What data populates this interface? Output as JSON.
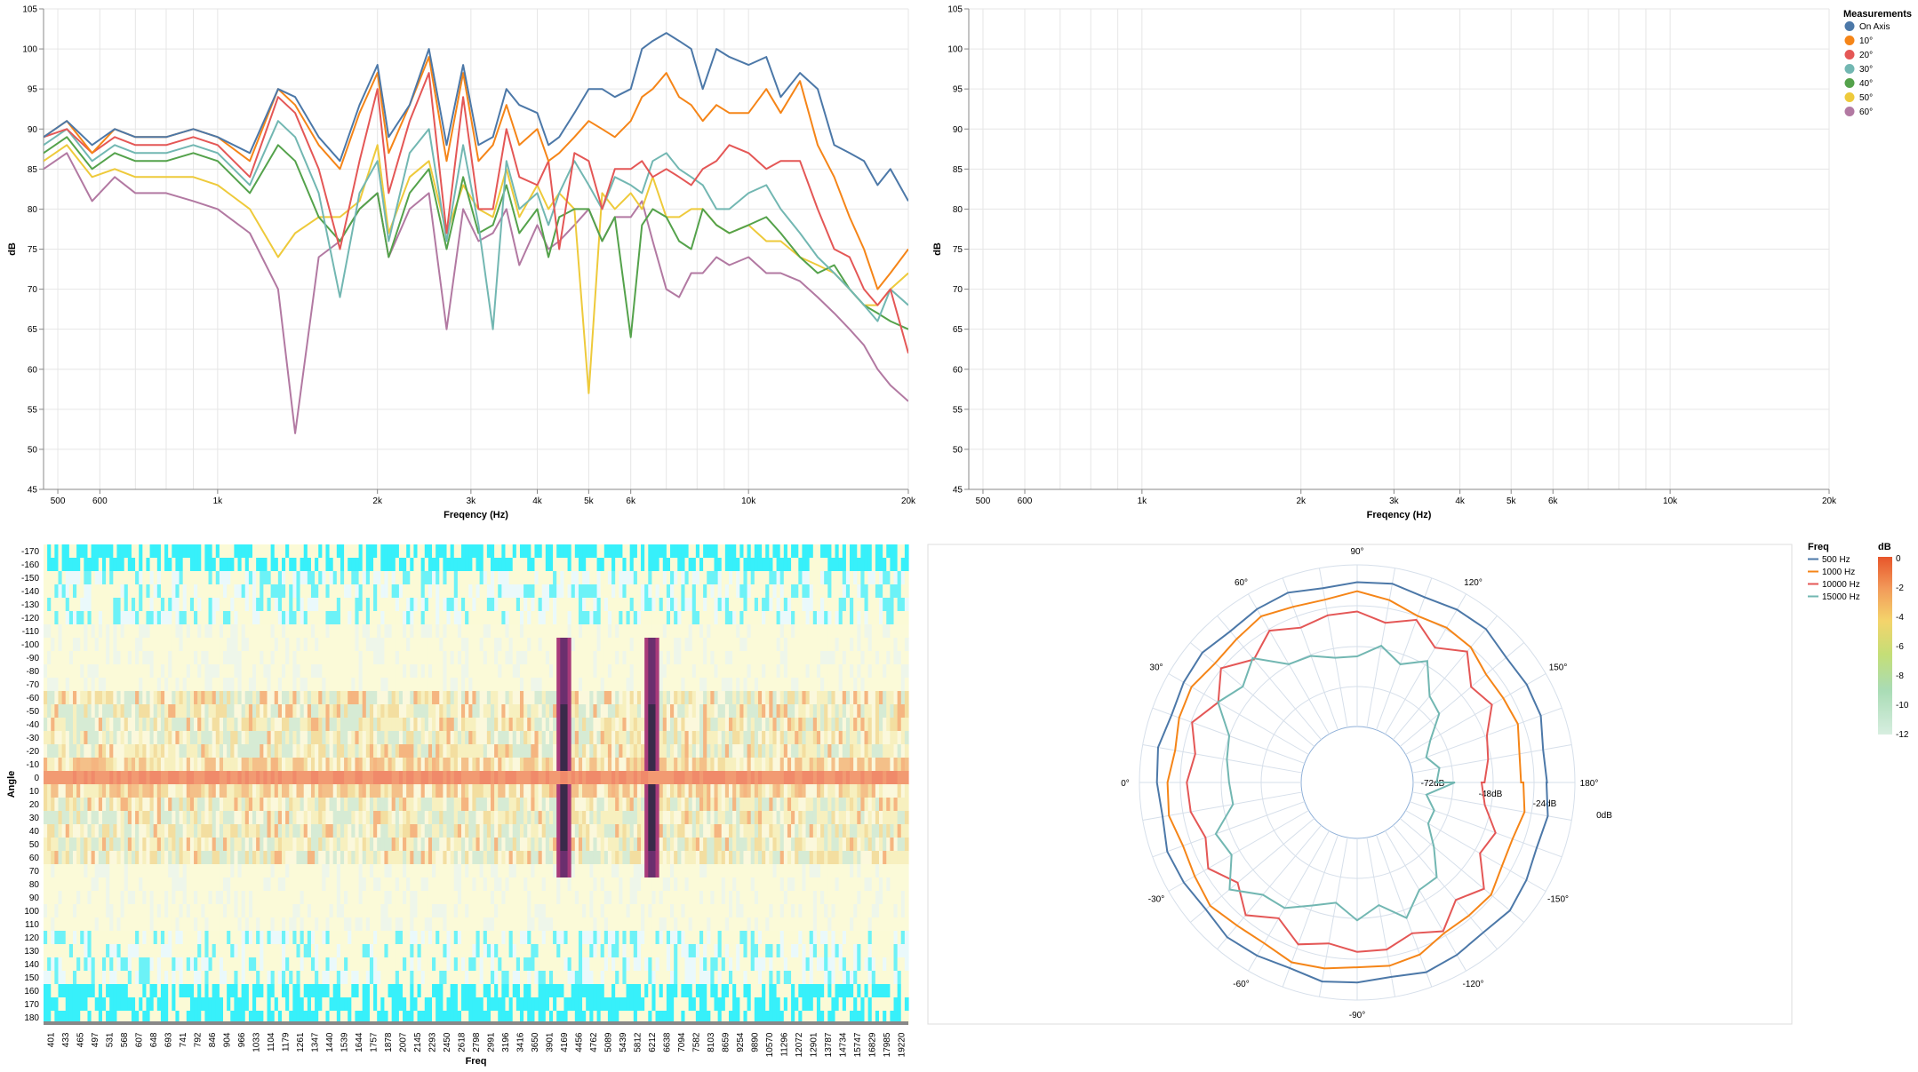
{
  "chart_data": [
    {
      "type": "line",
      "panel": "spl-top-left",
      "xlabel": "Freqency (Hz)",
      "ylabel": "dB",
      "x_scale": "log",
      "xlim": [
        470,
        20000
      ],
      "ylim": [
        45,
        105
      ],
      "x_ticks": [
        500,
        600,
        1000,
        2000,
        3000,
        4000,
        5000,
        6000,
        10000,
        20000
      ],
      "x_tick_labels": [
        "500",
        "600",
        "1k",
        "2k",
        "3k",
        "4k",
        "5k",
        "6k",
        "10k",
        "20k"
      ],
      "y_ticks": [
        45,
        50,
        55,
        60,
        65,
        70,
        75,
        80,
        85,
        90,
        95,
        100,
        105
      ],
      "grid": true,
      "series": [
        {
          "name": "On Axis",
          "color": "#4c78a8",
          "x": [
            470,
            520,
            580,
            640,
            700,
            800,
            900,
            1000,
            1150,
            1300,
            1400,
            1550,
            1700,
            1850,
            2000,
            2100,
            2300,
            2500,
            2700,
            2900,
            3100,
            3300,
            3500,
            3700,
            4000,
            4200,
            4400,
            4700,
            5000,
            5300,
            5600,
            6000,
            6300,
            6600,
            7000,
            7400,
            7800,
            8200,
            8700,
            9200,
            10000,
            10800,
            11500,
            12500,
            13500,
            14500,
            15500,
            16500,
            17500,
            18500,
            20000
          ],
          "y": [
            89,
            91,
            88,
            90,
            89,
            89,
            90,
            89,
            87,
            95,
            94,
            89,
            86,
            93,
            98,
            89,
            93,
            100,
            88,
            98,
            88,
            89,
            95,
            93,
            92,
            88,
            89,
            92,
            95,
            95,
            94,
            95,
            100,
            101,
            102,
            101,
            100,
            95,
            100,
            99,
            98,
            99,
            94,
            97,
            95,
            88,
            87,
            86,
            83,
            85,
            81
          ]
        },
        {
          "name": "10°",
          "color": "#f58518",
          "x": [
            470,
            520,
            580,
            640,
            700,
            800,
            900,
            1000,
            1150,
            1300,
            1400,
            1550,
            1700,
            1850,
            2000,
            2100,
            2300,
            2500,
            2700,
            2900,
            3100,
            3300,
            3500,
            3700,
            4000,
            4200,
            4400,
            4700,
            5000,
            5300,
            5600,
            6000,
            6300,
            6600,
            7000,
            7400,
            7800,
            8200,
            8700,
            9200,
            10000,
            10800,
            11500,
            12500,
            13500,
            14500,
            15500,
            16500,
            17500,
            18500,
            20000
          ],
          "y": [
            89,
            91,
            87,
            90,
            89,
            89,
            90,
            89,
            86,
            95,
            93,
            88,
            85,
            92,
            97,
            87,
            93,
            99,
            86,
            97,
            86,
            88,
            93,
            88,
            90,
            86,
            87,
            89,
            91,
            90,
            89,
            91,
            94,
            95,
            97,
            94,
            93,
            91,
            93,
            92,
            92,
            95,
            92,
            96,
            88,
            84,
            79,
            75,
            70,
            72,
            75
          ]
        },
        {
          "name": "20°",
          "color": "#e45756",
          "x": [
            470,
            520,
            580,
            640,
            700,
            800,
            900,
            1000,
            1150,
            1300,
            1400,
            1550,
            1700,
            1850,
            2000,
            2100,
            2300,
            2500,
            2700,
            2900,
            3100,
            3300,
            3500,
            3700,
            4000,
            4200,
            4400,
            4700,
            5000,
            5300,
            5600,
            6000,
            6300,
            6600,
            7000,
            7400,
            7800,
            8200,
            8700,
            9200,
            10000,
            10800,
            11500,
            12500,
            13500,
            14500,
            15500,
            16500,
            17500,
            18500,
            20000
          ],
          "y": [
            89,
            90,
            87,
            89,
            88,
            88,
            89,
            88,
            84,
            94,
            92,
            85,
            75,
            86,
            95,
            82,
            91,
            97,
            77,
            94,
            80,
            80,
            90,
            84,
            83,
            86,
            75,
            87,
            86,
            80,
            85,
            85,
            86,
            84,
            85,
            84,
            83,
            85,
            86,
            88,
            87,
            85,
            86,
            86,
            80,
            75,
            74,
            70,
            68,
            70,
            62
          ]
        },
        {
          "name": "30°",
          "color": "#72b7b2",
          "x": [
            470,
            520,
            580,
            640,
            700,
            800,
            900,
            1000,
            1150,
            1300,
            1400,
            1550,
            1700,
            1850,
            2000,
            2100,
            2300,
            2500,
            2700,
            2900,
            3100,
            3300,
            3500,
            3700,
            4000,
            4200,
            4400,
            4700,
            5000,
            5300,
            5600,
            6000,
            6300,
            6600,
            7000,
            7400,
            7800,
            8200,
            8700,
            9200,
            10000,
            10800,
            11500,
            12500,
            13500,
            14500,
            15500,
            16500,
            17500,
            18500,
            20000
          ],
          "y": [
            88,
            90,
            86,
            88,
            87,
            87,
            88,
            87,
            83,
            91,
            89,
            82,
            69,
            82,
            86,
            76,
            87,
            90,
            76,
            88,
            78,
            65,
            86,
            80,
            82,
            78,
            82,
            86,
            83,
            80,
            84,
            83,
            82,
            86,
            87,
            85,
            84,
            83,
            80,
            80,
            82,
            83,
            80,
            77,
            74,
            72,
            70,
            68,
            66,
            70,
            68
          ]
        },
        {
          "name": "40°",
          "color": "#54a24b",
          "x": [
            470,
            520,
            580,
            640,
            700,
            800,
            900,
            1000,
            1150,
            1300,
            1400,
            1550,
            1700,
            1850,
            2000,
            2100,
            2300,
            2500,
            2700,
            2900,
            3100,
            3300,
            3500,
            3700,
            4000,
            4200,
            4400,
            4700,
            5000,
            5300,
            5600,
            6000,
            6300,
            6600,
            7000,
            7400,
            7800,
            8200,
            8700,
            9200,
            10000,
            10800,
            11500,
            12500,
            13500,
            14500,
            15500,
            16500,
            17500,
            18500,
            20000
          ],
          "y": [
            87,
            89,
            85,
            87,
            86,
            86,
            87,
            86,
            82,
            88,
            86,
            79,
            76,
            80,
            82,
            74,
            82,
            85,
            75,
            84,
            77,
            78,
            83,
            77,
            80,
            74,
            79,
            80,
            80,
            76,
            79,
            64,
            78,
            80,
            79,
            76,
            75,
            80,
            78,
            77,
            78,
            79,
            77,
            74,
            72,
            73,
            70,
            68,
            67,
            66,
            65
          ]
        },
        {
          "name": "50°",
          "color": "#eeca3b",
          "x": [
            470,
            520,
            580,
            640,
            700,
            800,
            900,
            1000,
            1150,
            1300,
            1400,
            1550,
            1700,
            1850,
            2000,
            2100,
            2300,
            2500,
            2700,
            2900,
            3100,
            3300,
            3500,
            3700,
            4000,
            4200,
            4400,
            4700,
            5000,
            5300,
            5600,
            6000,
            6300,
            6600,
            7000,
            7400,
            7800,
            8200,
            8700,
            9200,
            10000,
            10800,
            11500,
            12500,
            13500,
            14500,
            15500,
            16500,
            17500,
            18500,
            20000
          ],
          "y": [
            86,
            88,
            84,
            85,
            84,
            84,
            84,
            83,
            80,
            74,
            77,
            79,
            79,
            81,
            88,
            77,
            84,
            86,
            77,
            83,
            80,
            79,
            85,
            79,
            83,
            80,
            82,
            80,
            57,
            82,
            80,
            82,
            80,
            84,
            79,
            79,
            80,
            80,
            78,
            77,
            78,
            76,
            76,
            74,
            73,
            72,
            70,
            68,
            68,
            70,
            72
          ]
        },
        {
          "name": "60°",
          "color": "#b279a2",
          "x": [
            470,
            520,
            580,
            640,
            700,
            800,
            900,
            1000,
            1150,
            1300,
            1400,
            1550,
            1700,
            1850,
            2000,
            2100,
            2300,
            2500,
            2700,
            2900,
            3100,
            3300,
            3500,
            3700,
            4000,
            4200,
            4400,
            4700,
            5000,
            5300,
            5600,
            6000,
            6300,
            6600,
            7000,
            7400,
            7800,
            8200,
            8700,
            9200,
            10000,
            10800,
            11500,
            12500,
            13500,
            14500,
            15500,
            16500,
            17500,
            18500,
            20000
          ],
          "y": [
            85,
            87,
            81,
            84,
            82,
            82,
            81,
            80,
            77,
            70,
            52,
            74,
            76,
            80,
            82,
            74,
            80,
            82,
            65,
            80,
            76,
            77,
            80,
            73,
            78,
            75,
            76,
            78,
            80,
            76,
            79,
            79,
            81,
            76,
            70,
            69,
            72,
            72,
            74,
            73,
            74,
            72,
            72,
            71,
            69,
            67,
            65,
            63,
            60,
            58,
            56
          ]
        }
      ]
    },
    {
      "type": "line",
      "panel": "spl-top-right",
      "xlabel": "Freqency (Hz)",
      "ylabel": "dB",
      "x_scale": "log",
      "xlim": [
        470,
        20000
      ],
      "ylim": [
        45,
        105
      ],
      "x_ticks": [
        500,
        600,
        1000,
        2000,
        3000,
        4000,
        5000,
        6000,
        10000,
        20000
      ],
      "x_tick_labels": [
        "500",
        "600",
        "1k",
        "2k",
        "3k",
        "4k",
        "5k",
        "6k",
        "10k",
        "20k"
      ],
      "y_ticks": [
        45,
        50,
        55,
        60,
        65,
        70,
        75,
        80,
        85,
        90,
        95,
        100,
        105
      ],
      "grid": true,
      "series": [],
      "legend": {
        "title": "Measurements",
        "placement": "top-right",
        "items": [
          {
            "label": "On Axis",
            "color": "#4c78a8"
          },
          {
            "label": "10°",
            "color": "#f58518"
          },
          {
            "label": "20°",
            "color": "#e45756"
          },
          {
            "label": "30°",
            "color": "#72b7b2"
          },
          {
            "label": "40°",
            "color": "#54a24b"
          },
          {
            "label": "50°",
            "color": "#eeca3b"
          },
          {
            "label": "60°",
            "color": "#b279a2"
          }
        ]
      }
    },
    {
      "type": "heatmap",
      "panel": "directivity-heatmap",
      "xlabel": "Freq",
      "ylabel": "Angle",
      "x_categories": [
        "401",
        "433",
        "465",
        "497",
        "531",
        "568",
        "607",
        "648",
        "693",
        "741",
        "792",
        "846",
        "904",
        "966",
        "1033",
        "1104",
        "1179",
        "1261",
        "1347",
        "1440",
        "1539",
        "1644",
        "1757",
        "1878",
        "2007",
        "2145",
        "2293",
        "2450",
        "2618",
        "2798",
        "2991",
        "3196",
        "3416",
        "3650",
        "3901",
        "4169",
        "4456",
        "4762",
        "5089",
        "5439",
        "5812",
        "6212",
        "6638",
        "7094",
        "7582",
        "8103",
        "8659",
        "9254",
        "9890",
        "10570",
        "11296",
        "12072",
        "12901",
        "13787",
        "14734",
        "15747",
        "16829",
        "17985",
        "19220"
      ],
      "y_categories": [
        "-170",
        "-160",
        "-150",
        "-140",
        "-130",
        "-120",
        "-110",
        "-100",
        "-90",
        "-80",
        "-70",
        "-60",
        "-50",
        "-40",
        "-30",
        "-20",
        "-10",
        "0",
        "10",
        "20",
        "30",
        "40",
        "50",
        "60",
        "70",
        "80",
        "90",
        "100",
        "110",
        "120",
        "130",
        "140",
        "150",
        "160",
        "170",
        "180"
      ],
      "color_scale": "red-yellow-green-cyan, with dark purple/black at hot spots",
      "highlights": [
        {
          "freq": "0 deg row",
          "note": "red band across all frequencies"
        },
        {
          "freq": "4169",
          "angles": "-100 to 70",
          "note": "dark narrow column"
        },
        {
          "freq": "6212",
          "angles": "-100 to 70",
          "note": "dark narrow column"
        }
      ]
    },
    {
      "type": "polar",
      "panel": "polar-plot",
      "angle_labels": [
        "90°",
        "120°",
        "150°",
        "180°",
        "-150°",
        "-120°",
        "-90°",
        "-60°",
        "-30°",
        "0°",
        "30°",
        "60°"
      ],
      "radial_labels": [
        "-72dB",
        "-48dB",
        "-24dB",
        "0dB"
      ],
      "series": [
        {
          "name": "500 Hz",
          "color": "#4c78a8"
        },
        {
          "name": "1000 Hz",
          "color": "#f58518"
        },
        {
          "name": "10000 Hz",
          "color": "#e45756"
        },
        {
          "name": "15000 Hz",
          "color": "#72b7b2"
        }
      ],
      "legend": {
        "freq_title": "Freq",
        "db_title": "dB",
        "db_ticks": [
          "0",
          "-2",
          "-4",
          "-6",
          "-8",
          "-10",
          "-12"
        ]
      }
    }
  ]
}
